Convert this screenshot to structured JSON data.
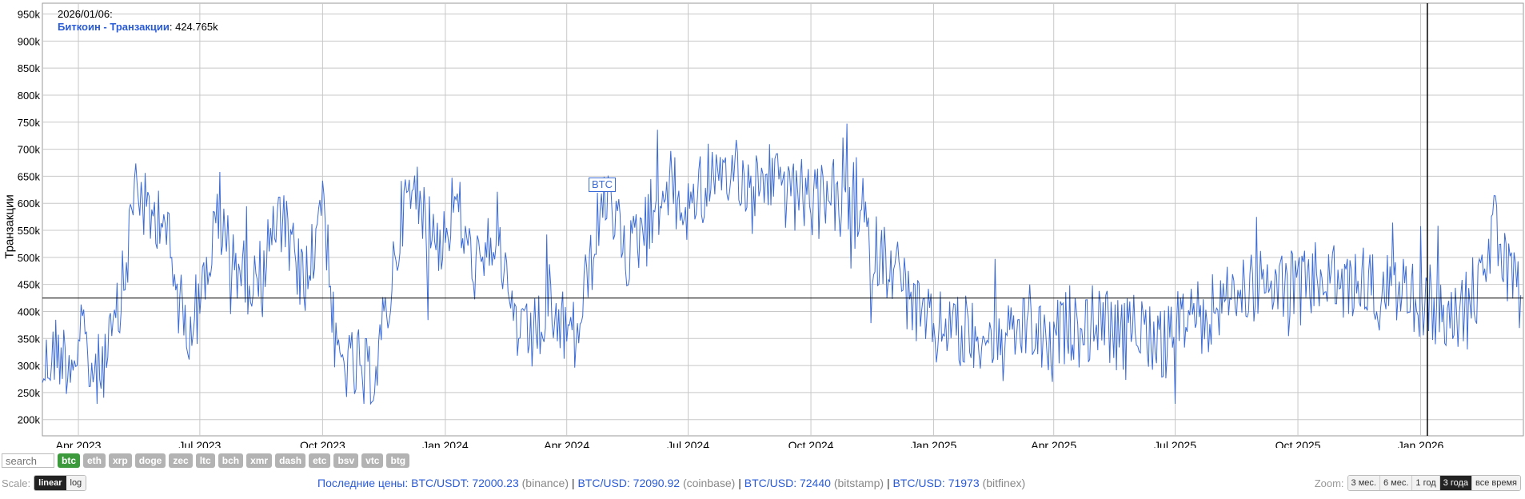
{
  "tooltip": {
    "date": "2026/01/06:",
    "series": "Биткоин - Транзакции",
    "value": "424.765k"
  },
  "chart_data": {
    "type": "line",
    "ylabel": "Транзакции",
    "ylim": [
      170000,
      970000
    ],
    "yticks": [
      200000,
      250000,
      300000,
      350000,
      400000,
      450000,
      500000,
      550000,
      600000,
      650000,
      700000,
      750000,
      800000,
      850000,
      900000,
      950000
    ],
    "yticklabels": [
      "200k",
      "250k",
      "300k",
      "350k",
      "400k",
      "450k",
      "500k",
      "550k",
      "600k",
      "650k",
      "700k",
      "750k",
      "800k",
      "850k",
      "900k",
      "950k"
    ],
    "xlim": [
      "2023-03-05",
      "2026-03-19"
    ],
    "xticks": [
      "2023-04-01",
      "2023-07-01",
      "2023-10-01",
      "2024-01-01",
      "2024-04-01",
      "2024-07-01",
      "2024-10-01",
      "2025-01-01",
      "2025-04-01",
      "2025-07-01",
      "2025-10-01",
      "2026-01-01"
    ],
    "xticklabels": [
      "Apr 2023",
      "Jul 2023",
      "Oct 2023",
      "Jan 2024",
      "Apr 2024",
      "Jul 2024",
      "Oct 2024",
      "Jan 2025",
      "Apr 2025",
      "Jul 2025",
      "Oct 2025",
      "Jan 2026"
    ],
    "grid": true,
    "crosshair": {
      "x": "2026-01-06",
      "y": 424765
    },
    "series": [
      {
        "name": "Биткоин - Транзакции",
        "color": "#3b6bd6",
        "points": [
          [
            "2023-03-05",
            290000
          ],
          [
            "2023-03-15",
            330000
          ],
          [
            "2023-03-25",
            310000
          ],
          [
            "2023-04-04",
            340000
          ],
          [
            "2023-04-14",
            280000
          ],
          [
            "2023-04-24",
            330000
          ],
          [
            "2023-05-04",
            420000
          ],
          [
            "2023-05-14",
            650000
          ],
          [
            "2023-05-24",
            560000
          ],
          [
            "2023-06-03",
            600000
          ],
          [
            "2023-06-13",
            430000
          ],
          [
            "2023-06-23",
            380000
          ],
          [
            "2023-07-03",
            440000
          ],
          [
            "2023-07-13",
            560000
          ],
          [
            "2023-07-23",
            520000
          ],
          [
            "2023-08-02",
            470000
          ],
          [
            "2023-08-12",
            450000
          ],
          [
            "2023-08-22",
            540000
          ],
          [
            "2023-09-01",
            560000
          ],
          [
            "2023-09-11",
            480000
          ],
          [
            "2023-09-21",
            460000
          ],
          [
            "2023-10-01",
            640000
          ],
          [
            "2023-10-11",
            310000
          ],
          [
            "2023-10-21",
            300000
          ],
          [
            "2023-10-31",
            280000
          ],
          [
            "2023-11-10",
            290000
          ],
          [
            "2023-11-20",
            430000
          ],
          [
            "2023-11-30",
            590000
          ],
          [
            "2023-12-10",
            620000
          ],
          [
            "2023-12-20",
            560000
          ],
          [
            "2023-12-30",
            530000
          ],
          [
            "2024-01-09",
            610000
          ],
          [
            "2024-01-19",
            500000
          ],
          [
            "2024-01-29",
            470000
          ],
          [
            "2024-02-08",
            560000
          ],
          [
            "2024-02-18",
            420000
          ],
          [
            "2024-02-28",
            340000
          ],
          [
            "2024-03-09",
            360000
          ],
          [
            "2024-03-19",
            390000
          ],
          [
            "2024-03-29",
            370000
          ],
          [
            "2024-04-08",
            350000
          ],
          [
            "2024-04-18",
            480000
          ],
          [
            "2024-04-28",
            600000
          ],
          [
            "2024-05-08",
            560000
          ],
          [
            "2024-05-18",
            500000
          ],
          [
            "2024-05-28",
            560000
          ],
          [
            "2024-06-07",
            600000
          ],
          [
            "2024-06-17",
            640000
          ],
          [
            "2024-06-27",
            580000
          ],
          [
            "2024-07-07",
            620000
          ],
          [
            "2024-07-17",
            660000
          ],
          [
            "2024-07-27",
            610000
          ],
          [
            "2024-08-06",
            680000
          ],
          [
            "2024-08-16",
            620000
          ],
          [
            "2024-08-26",
            640000
          ],
          [
            "2024-09-05",
            660000
          ],
          [
            "2024-09-15",
            600000
          ],
          [
            "2024-09-25",
            620000
          ],
          [
            "2024-10-05",
            590000
          ],
          [
            "2024-10-15",
            640000
          ],
          [
            "2024-10-25",
            560000
          ],
          [
            "2024-11-04",
            620000
          ],
          [
            "2024-11-14",
            520000
          ],
          [
            "2024-11-24",
            500000
          ],
          [
            "2024-12-04",
            480000
          ],
          [
            "2024-12-14",
            420000
          ],
          [
            "2024-12-24",
            380000
          ],
          [
            "2025-01-03",
            360000
          ],
          [
            "2025-01-13",
            390000
          ],
          [
            "2025-01-23",
            340000
          ],
          [
            "2025-02-02",
            370000
          ],
          [
            "2025-02-12",
            350000
          ],
          [
            "2025-02-22",
            330000
          ],
          [
            "2025-03-04",
            360000
          ],
          [
            "2025-03-14",
            380000
          ],
          [
            "2025-03-24",
            340000
          ],
          [
            "2025-04-03",
            350000
          ],
          [
            "2025-04-13",
            380000
          ],
          [
            "2025-04-23",
            360000
          ],
          [
            "2025-05-03",
            390000
          ],
          [
            "2025-05-13",
            370000
          ],
          [
            "2025-05-23",
            340000
          ],
          [
            "2025-06-02",
            400000
          ],
          [
            "2025-06-12",
            360000
          ],
          [
            "2025-06-22",
            330000
          ],
          [
            "2025-07-02",
            370000
          ],
          [
            "2025-07-12",
            400000
          ],
          [
            "2025-07-22",
            380000
          ],
          [
            "2025-08-01",
            410000
          ],
          [
            "2025-08-11",
            430000
          ],
          [
            "2025-08-21",
            440000
          ],
          [
            "2025-08-31",
            450000
          ],
          [
            "2025-09-10",
            430000
          ],
          [
            "2025-09-20",
            460000
          ],
          [
            "2025-09-30",
            440000
          ],
          [
            "2025-10-10",
            450000
          ],
          [
            "2025-10-20",
            470000
          ],
          [
            "2025-10-30",
            450000
          ],
          [
            "2025-11-09",
            440000
          ],
          [
            "2025-11-19",
            460000
          ],
          [
            "2025-11-29",
            430000
          ],
          [
            "2025-12-09",
            450000
          ],
          [
            "2025-12-19",
            440000
          ],
          [
            "2025-12-29",
            420000
          ],
          [
            "2026-01-06",
            424765
          ],
          [
            "2026-01-16",
            390000
          ],
          [
            "2026-01-26",
            380000
          ],
          [
            "2026-02-05",
            420000
          ],
          [
            "2026-02-15",
            450000
          ],
          [
            "2026-02-25",
            560000
          ],
          [
            "2026-03-07",
            460000
          ],
          [
            "2026-03-17",
            430000
          ]
        ]
      }
    ]
  },
  "btc_tag": "BTC",
  "coins": {
    "search_placeholder": "search",
    "items": [
      "btc",
      "eth",
      "xrp",
      "doge",
      "zec",
      "ltc",
      "bch",
      "xmr",
      "dash",
      "etc",
      "bsv",
      "vtc",
      "btg"
    ],
    "active": "btc"
  },
  "scale": {
    "label": "Scale:",
    "linear": "linear",
    "log": "log",
    "active": "linear"
  },
  "prices": {
    "prefix": "Последние цены:",
    "items": [
      {
        "pair": "BTC/USDT: 72000.23",
        "exchange": "(binance)"
      },
      {
        "pair": "BTC/USD: 72090.92",
        "exchange": "(coinbase)"
      },
      {
        "pair": "BTC/USD: 72440",
        "exchange": "(bitstamp)"
      },
      {
        "pair": "BTC/USD: 71973",
        "exchange": "(bitfinex)"
      }
    ]
  },
  "zoom": {
    "label": "Zoom:",
    "options": [
      "3 мес.",
      "6 мес.",
      "1 год",
      "3 года",
      "все время"
    ],
    "active": "3 года"
  },
  "colors": {
    "line": "#3b6bd6",
    "grid": "#c8c8c8",
    "crosshair": "#000000",
    "active_coin": "#3c9a3c"
  }
}
